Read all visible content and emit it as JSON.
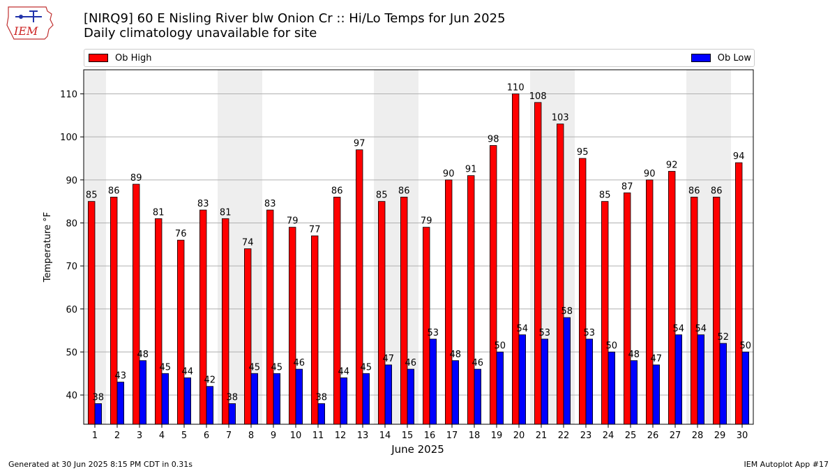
{
  "header": {
    "title": "[NIRQ9] 60 E Nisling River blw Onion Cr :: Hi/Lo Temps for Jun 2025",
    "subtitle": "Daily climatology unavailable for site"
  },
  "logo": {
    "text": "IEM"
  },
  "footer": {
    "left": "Generated at 30 Jun 2025 8:15 PM CDT in 0.31s",
    "right": "IEM Autoplot App #17"
  },
  "colors": {
    "high": "#ff0000",
    "low": "#0000ff",
    "weekend": "#eeeeee",
    "grid": "#b0b0b0"
  },
  "chart_data": {
    "type": "bar",
    "title": "[NIRQ9] 60 E Nisling River blw Onion Cr :: Hi/Lo Temps for Jun 2025",
    "subtitle": "Daily climatology unavailable for site",
    "xlabel": "June 2025",
    "ylabel": "Temperature °F",
    "ylim": [
      33.2,
      115.6
    ],
    "yticks": [
      40,
      50,
      60,
      70,
      80,
      90,
      100,
      110
    ],
    "categories": [
      "1",
      "2",
      "3",
      "4",
      "5",
      "6",
      "7",
      "8",
      "9",
      "10",
      "11",
      "12",
      "13",
      "14",
      "15",
      "16",
      "17",
      "18",
      "19",
      "20",
      "21",
      "22",
      "23",
      "24",
      "25",
      "26",
      "27",
      "28",
      "29",
      "30"
    ],
    "series": [
      {
        "name": "Ob High",
        "color": "#ff0000",
        "values": [
          85,
          86,
          89,
          81,
          76,
          83,
          81,
          74,
          83,
          79,
          77,
          86,
          97,
          85,
          86,
          79,
          90,
          91,
          98,
          110,
          108,
          103,
          95,
          85,
          87,
          90,
          92,
          86,
          86,
          94
        ],
        "labels": [
          "85",
          "86",
          "89",
          "81",
          "76",
          "83",
          "81",
          "74",
          "83",
          "79",
          "77",
          "86",
          "97",
          "85",
          "86",
          "79",
          "90",
          "91",
          "98",
          "110",
          "108",
          "103",
          "95",
          "85",
          "87",
          "90",
          "92",
          "86",
          "86",
          "94"
        ]
      },
      {
        "name": "Ob Low",
        "color": "#0000ff",
        "values": [
          38,
          43,
          48,
          45,
          44,
          42,
          38,
          45,
          45,
          46,
          38,
          44,
          45,
          47,
          46,
          53,
          48,
          46,
          50,
          54,
          53,
          58,
          53,
          50,
          48,
          47,
          54,
          54,
          52,
          50
        ],
        "labels": [
          "38",
          "43",
          "48",
          "45",
          "44",
          "42",
          "38",
          "45",
          "45",
          "46",
          "38",
          "44",
          "45",
          "47",
          "46",
          "53",
          "48",
          "46",
          "50",
          "54",
          "53",
          "58",
          "53",
          "50",
          "48",
          "47",
          "54",
          "54",
          "52",
          "50"
        ]
      }
    ],
    "weekend_days": [
      1,
      7,
      8,
      14,
      15,
      21,
      22,
      28,
      29
    ],
    "legend_position": "top, spanning width"
  }
}
